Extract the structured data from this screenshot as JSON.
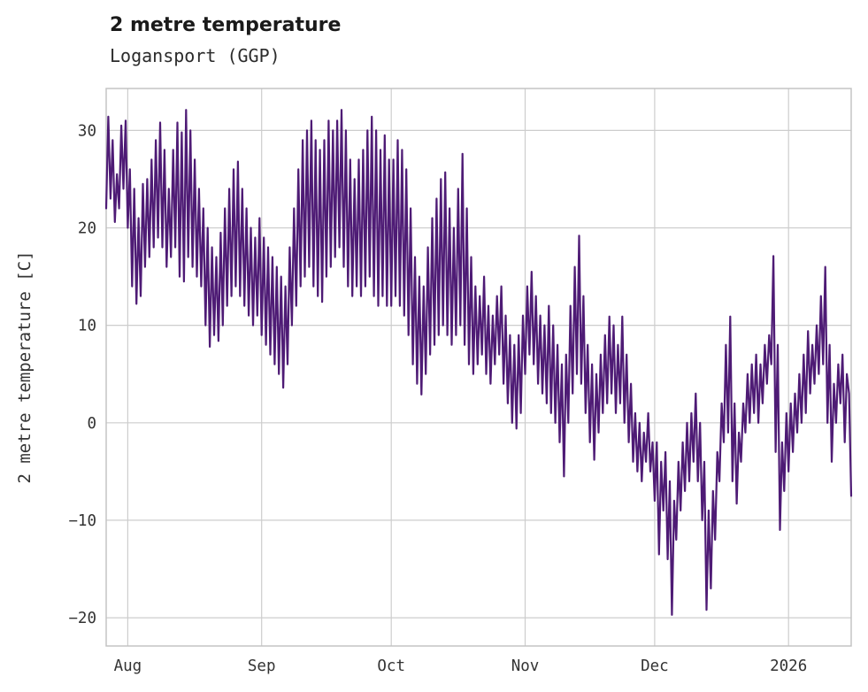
{
  "header": {
    "title": "2 metre temperature",
    "subtitle": "Logansport (GGP)"
  },
  "chart_data": {
    "type": "line",
    "title": "2 metre temperature",
    "subtitle": "Logansport (GGP)",
    "xlabel": "",
    "ylabel": "2 metre temperature [C]",
    "line_color": "#4e1b75",
    "grid_color": "#cdcdcd",
    "border_color": "#c0c0c0",
    "background": "#ffffff",
    "grid": "on",
    "legend": "none",
    "ylim": [
      -22.9,
      34.3
    ],
    "xlim_days": [
      0,
      172.5
    ],
    "y_ticks": [
      {
        "value": -20,
        "label": "−20"
      },
      {
        "value": -10,
        "label": "−10"
      },
      {
        "value": 0,
        "label": "0"
      },
      {
        "value": 10,
        "label": "10"
      },
      {
        "value": 20,
        "label": "20"
      },
      {
        "value": 30,
        "label": "30"
      }
    ],
    "x_ticks": [
      {
        "day": 5,
        "label": "Aug"
      },
      {
        "day": 36,
        "label": "Sep"
      },
      {
        "day": 66,
        "label": "Oct"
      },
      {
        "day": 97,
        "label": "Nov"
      },
      {
        "day": 127,
        "label": "Dec"
      },
      {
        "day": 158,
        "label": "2026"
      }
    ],
    "sampling": "two samples per day (daily minimum, daily maximum), day 0 = 27 July",
    "values": [
      22,
      31.4,
      23,
      29,
      20.6,
      25.5,
      22,
      30.5,
      24,
      31,
      20,
      26,
      14,
      24,
      12.2,
      21,
      13,
      24.5,
      16,
      25,
      17,
      27,
      18,
      29,
      19,
      30.8,
      18,
      28,
      16,
      24,
      17,
      28,
      18,
      30.8,
      15,
      29.8,
      14.5,
      32.1,
      17,
      30,
      16,
      27,
      15,
      24,
      14,
      22,
      10,
      20,
      7.8,
      18,
      9,
      17,
      8.4,
      19.5,
      10,
      22,
      12,
      24,
      13,
      26,
      14,
      26.8,
      13,
      24,
      12,
      22,
      11,
      20,
      10,
      19,
      11,
      21,
      9,
      19,
      8,
      18,
      7,
      17,
      6,
      16,
      5,
      15,
      3.6,
      14,
      6,
      18,
      10,
      22,
      12,
      26,
      14,
      29,
      15,
      30,
      16,
      31,
      14,
      29,
      13,
      28,
      12.4,
      29,
      15,
      31,
      16,
      30,
      17,
      31,
      18,
      32.1,
      16,
      30,
      14,
      27,
      13,
      25,
      14,
      27,
      13,
      28,
      14,
      30,
      15,
      31.4,
      13,
      30,
      12,
      28,
      13,
      29.5,
      12,
      27,
      12,
      27,
      13,
      29,
      12,
      28,
      11,
      26,
      9,
      22,
      6,
      17,
      4,
      15,
      2.9,
      14,
      5,
      18,
      7,
      21,
      8,
      23,
      9,
      25,
      10,
      25.7,
      9,
      22,
      8,
      20,
      9,
      24,
      10,
      27.6,
      8,
      22,
      6,
      17,
      5,
      14,
      6,
      13,
      7,
      15,
      5,
      12,
      4,
      11,
      6,
      13,
      7,
      14,
      4,
      11,
      2,
      9,
      0,
      8,
      -0.6,
      9,
      1,
      11,
      5,
      14,
      7,
      15.5,
      6,
      13,
      4,
      11,
      3,
      10,
      2,
      12,
      1,
      10,
      0,
      8,
      -2,
      6,
      -5.5,
      7,
      0,
      12,
      3,
      16,
      5,
      19.2,
      4,
      13,
      1,
      8,
      -2,
      6,
      -3.8,
      5,
      -1,
      7,
      1,
      9,
      2,
      10.9,
      3,
      10,
      1,
      8,
      2,
      10.9,
      0,
      7,
      -2,
      4,
      -4,
      1,
      -5,
      0,
      -6,
      -1,
      -4,
      1,
      -5,
      -2,
      -8,
      -2,
      -13.5,
      -4,
      -9,
      -3,
      -14,
      -6,
      -19.7,
      -8,
      -12,
      -4,
      -9,
      -2,
      -7,
      0,
      -6,
      1,
      -4,
      3,
      -6,
      0,
      -10,
      -4,
      -19.2,
      -9,
      -17,
      -7,
      -12,
      -3,
      -6,
      2,
      -2,
      8,
      -1,
      10.9,
      -6,
      2,
      -8.3,
      -1,
      -4,
      2,
      -1,
      5,
      0,
      6,
      1,
      7,
      0,
      6,
      2,
      8,
      4,
      9,
      6,
      17.1,
      -3,
      8,
      -11,
      -2,
      -7,
      1,
      -5,
      2,
      -3,
      3,
      -1,
      5,
      0,
      7,
      1,
      9.4,
      3,
      8,
      4,
      10,
      5,
      13,
      6,
      16,
      0,
      8,
      -4,
      4,
      0,
      6,
      2,
      7,
      -2,
      5,
      3,
      -7.5
    ]
  }
}
